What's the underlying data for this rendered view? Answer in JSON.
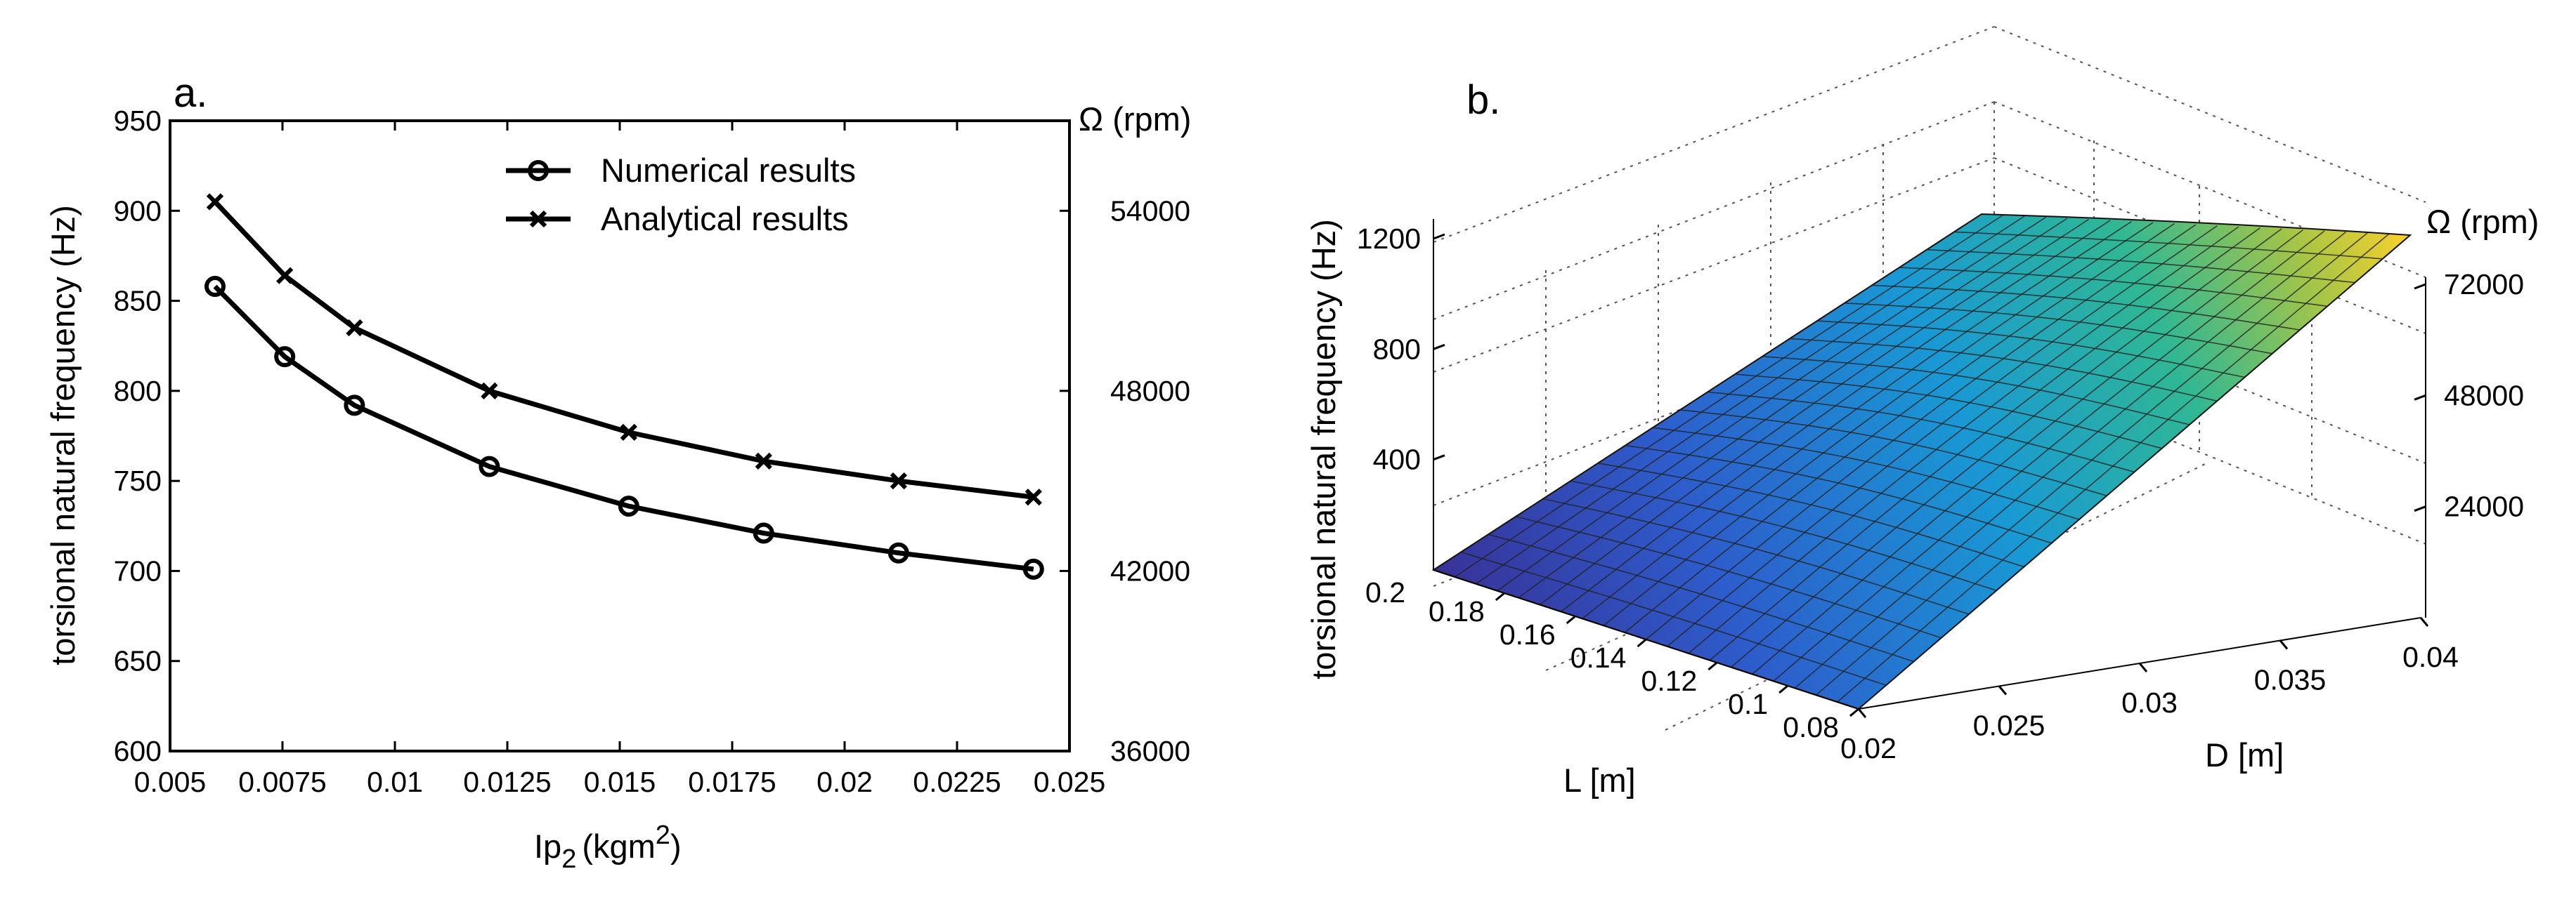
{
  "chart_data": [
    {
      "type": "line",
      "panel_label": "a.",
      "ylabel": "torsional natural frequency (Hz)",
      "xlabel_main": "Ip",
      "xlabel_sub": "2",
      "xlabel_units": "(kgm",
      "xlabel_sup": "2",
      "xlabel_close": ")",
      "right_ylabel": "Ω (rpm)",
      "xlim": [
        0.005,
        0.025
      ],
      "ylim": [
        600,
        950
      ],
      "x_ticks": [
        "0.005",
        "0.0075",
        "0.01",
        "0.0125",
        "0.015",
        "0.0175",
        "0.02",
        "0.0225",
        "0.025"
      ],
      "x_tick_values": [
        0.005,
        0.0075,
        0.01,
        0.0125,
        0.015,
        0.0175,
        0.02,
        0.0225,
        0.025
      ],
      "y_ticks": [
        "600",
        "650",
        "700",
        "750",
        "800",
        "850",
        "900",
        "950"
      ],
      "y_tick_values": [
        600,
        650,
        700,
        750,
        800,
        850,
        900,
        950
      ],
      "right_ticks": [
        "36000",
        "42000",
        "48000",
        "54000"
      ],
      "right_tick_values": [
        600,
        700,
        800,
        900
      ],
      "series": [
        {
          "name": "Numerical results",
          "marker": "circle",
          "x": [
            0.006,
            0.00755,
            0.0091,
            0.0121,
            0.0152,
            0.0182,
            0.0212,
            0.0242
          ],
          "y": [
            858,
            819,
            792,
            758,
            736,
            721,
            710,
            701
          ]
        },
        {
          "name": "Analytical results",
          "marker": "x",
          "x": [
            0.006,
            0.00755,
            0.0091,
            0.0121,
            0.0152,
            0.0182,
            0.0212,
            0.0242
          ],
          "y": [
            905,
            864,
            835,
            800,
            777,
            761,
            750,
            741
          ]
        }
      ],
      "legend": "top-center"
    },
    {
      "type": "surface",
      "panel_label": "b.",
      "zlabel": "torsional natural frequency (Hz)",
      "xlabel": "L [m]",
      "ylabel": "D [m]",
      "right_zlabel": "Ω (rpm)",
      "L_range": [
        0.08,
        0.2
      ],
      "D_range": [
        0.02,
        0.04
      ],
      "z_ticks": [
        "400",
        "800",
        "1200"
      ],
      "z_tick_values": [
        400,
        800,
        1200
      ],
      "right_z_ticks": [
        "24000",
        "48000",
        "72000"
      ],
      "right_z_tick_values": [
        400,
        800,
        1200
      ],
      "L_ticks": [
        "0.2",
        "0.18",
        "0.16",
        "0.14",
        "0.12",
        "0.1",
        "0.08"
      ],
      "L_tick_values": [
        0.2,
        0.18,
        0.16,
        0.14,
        0.12,
        0.1,
        0.08
      ],
      "D_ticks": [
        "0.02",
        "0.025",
        "0.03",
        "0.035",
        "0.04"
      ],
      "D_tick_values": [
        0.02,
        0.025,
        0.03,
        0.035,
        0.04
      ],
      "surface_corners": {
        "L0.2_D0.02": 100,
        "L0.08_D0.02": 260,
        "L0.2_D0.04": 600,
        "L0.08_D0.04": 1300
      },
      "colormap": [
        "#3e2a8c",
        "#2f5ec8",
        "#1aa3d6",
        "#2db89a",
        "#97c44d",
        "#f7c72c",
        "#f9fb15"
      ]
    }
  ]
}
